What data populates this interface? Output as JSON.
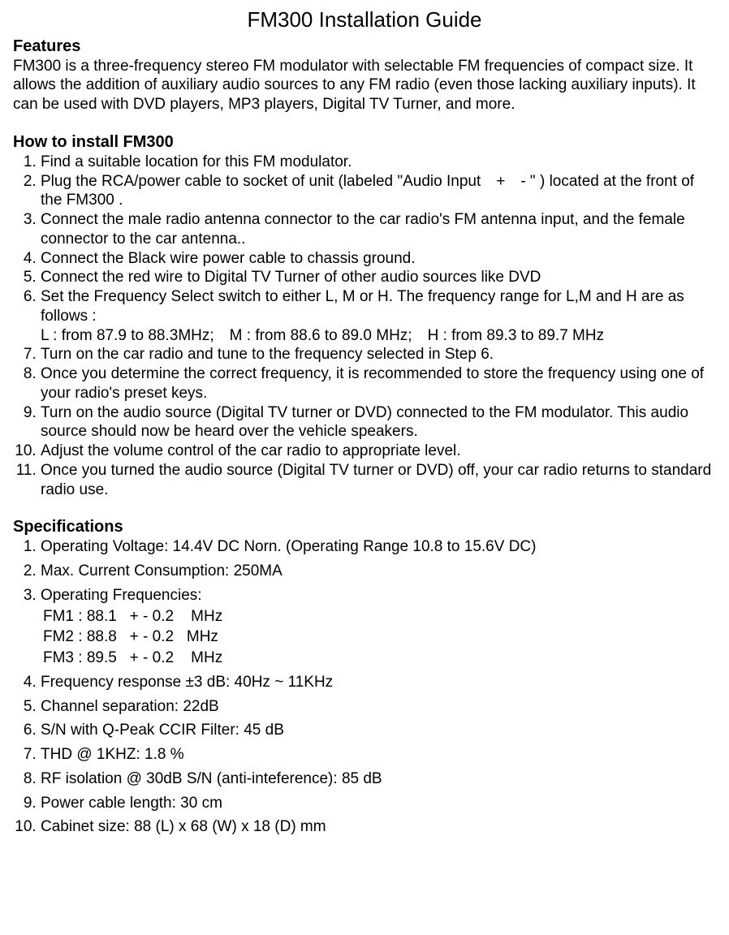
{
  "title": "FM300 Installation Guide",
  "features": {
    "heading": "Features",
    "body": "FM300 is a three-frequency stereo FM modulator with selectable FM frequencies of compact size. It allows the addition of auxiliary audio sources to any FM radio (even those lacking auxiliary inputs). It can be used with DVD players, MP3 players, Digital TV Turner, and more."
  },
  "install": {
    "heading": "How to install FM300",
    "steps": [
      "Find a suitable location for this FM modulator.",
      "Plug the RCA/power cable to socket of unit (labeled \"Audio Input + - \" ) located at the front of the FM300 .",
      "Connect the male radio antenna connector to the car radio's FM antenna input, and the female connector to the car antenna..",
      "Connect the Black wire power cable to chassis ground.",
      "Connect the red wire to Digital TV Turner of other audio sources like DVD",
      "Set the Frequency Select switch to either L, M or H. The frequency range for L,M and H are as follows :\nL : from 87.9 to 88.3MHz; M : from 88.6 to 89.0 MHz; H : from 89.3 to 89.7 MHz",
      "Turn on the car radio and tune to the frequency selected in Step 6.",
      "Once you determine the correct frequency, it is recommended to store the frequency using one of your radio's preset keys.",
      "Turn on the audio source (Digital TV turner or DVD) connected to the FM modulator. This audio source should now be heard over the vehicle speakers.",
      "Adjust the volume control of the car radio to appropriate level.",
      "Once you turned the audio source (Digital TV turner or DVD) off, your car radio returns to standard radio use."
    ]
  },
  "specs": {
    "heading": "Specifications",
    "items": [
      "Operating Voltage: 14.4V DC Norn. (Operating Range 10.8 to 15.6V DC)",
      "Max. Current Consumption: 250MA",
      "Operating Frequencies:",
      "Frequency response ±3 dB: 40Hz ~ 11KHz",
      "Channel separation: 22dB",
      "S/N with Q-Peak CCIR Filter: 45 dB",
      "THD @ 1KHZ: 1.8 %",
      "RF isolation @ 30dB S/N (anti-inteference): 85 dB",
      "Power cable length: 30 cm",
      "Cabinet size: 88 (L) x 68 (W) x 18 (D) mm"
    ],
    "freq_lines": [
      "FM1 : 88.1   + - 0.2    MHz",
      "FM2 : 88.8   + - 0.2   MHz",
      "FM3 : 89.5   + - 0.2    MHz"
    ]
  }
}
